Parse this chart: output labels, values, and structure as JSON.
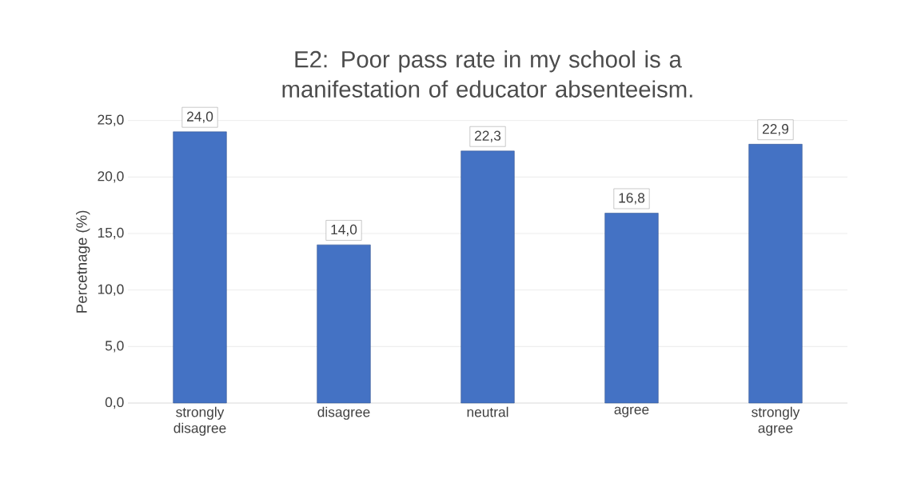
{
  "chart_data": {
    "type": "bar",
    "title": "E2: Poor pass rate in my school is a manifestation of educator absenteeism.",
    "ylabel": "Percetnage (%)",
    "categories": [
      "strongly disagree",
      "disagree",
      "neutral",
      "agree",
      "strongly agree"
    ],
    "values": [
      24.0,
      14.0,
      22.3,
      16.8,
      22.9
    ],
    "value_labels": [
      "24,0",
      "14,0",
      "22,3",
      "16,8",
      "22,9"
    ],
    "color": "#4472c4",
    "ylim": [
      0,
      25
    ],
    "yticks": [
      {
        "value": 0,
        "label": "0,0"
      },
      {
        "value": 5,
        "label": "5,0"
      },
      {
        "value": 10,
        "label": "10,0"
      },
      {
        "value": 15,
        "label": "15,0"
      },
      {
        "value": 20,
        "label": "20,0"
      },
      {
        "value": 25,
        "label": "25,0"
      }
    ],
    "grid": "y"
  }
}
